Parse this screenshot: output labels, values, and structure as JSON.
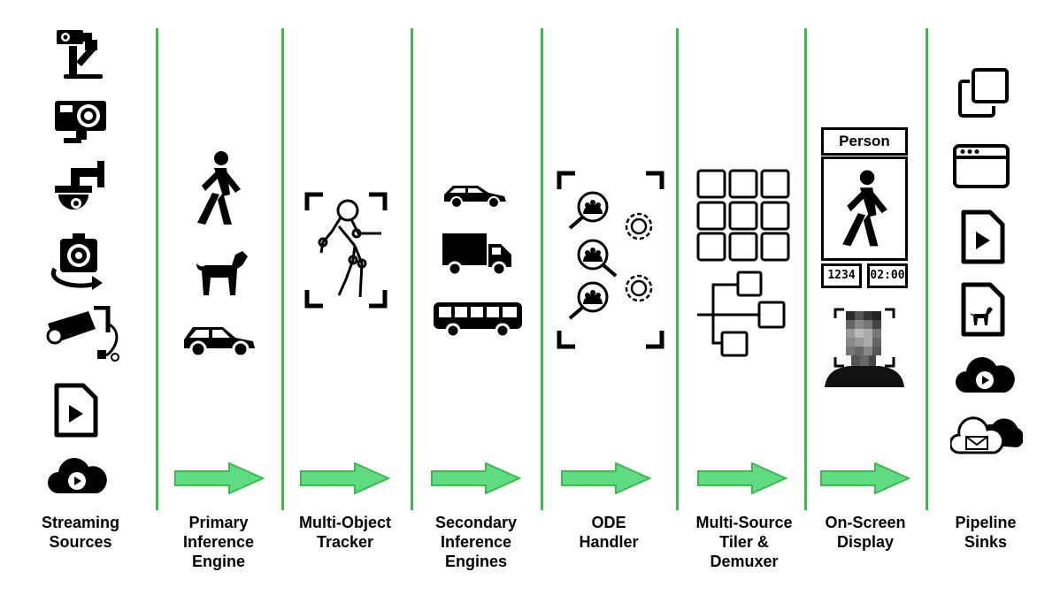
{
  "stages": [
    {
      "label": "Streaming\nSources"
    },
    {
      "label": "Primary\nInference\nEngine"
    },
    {
      "label": "Multi-Object\nTracker"
    },
    {
      "label": "Secondary\nInference\nEngines"
    },
    {
      "label": "ODE\nHandler"
    },
    {
      "label": "Multi-Source\nTiler &\nDemuxer"
    },
    {
      "label": "On-Screen\nDisplay"
    },
    {
      "label": "Pipeline\nSinks"
    }
  ],
  "osd": {
    "class_label": "Person",
    "object_id": "1234",
    "timestamp": "02:00"
  },
  "colors": {
    "divider": "#3dba4e",
    "arrow_fill": "#5fdc83",
    "arrow_stroke": "#3dba4e",
    "icon": "#000000"
  },
  "icons": {
    "sources": [
      "ptz-camera-icon",
      "action-camera-icon",
      "dome-camera-icon",
      "360-camera-icon",
      "bullet-camera-icon",
      "video-file-icon",
      "cloud-stream-icon"
    ],
    "primary": [
      "walking-person-icon",
      "dog-icon",
      "car-icon"
    ],
    "tracker": [
      "tracked-figure-icon"
    ],
    "secondary": [
      "car-icon",
      "truck-icon",
      "bus-icon"
    ],
    "ode": [
      "ode-trigger-action-icon"
    ],
    "tiler": [
      "tile-grid-icon",
      "demux-tree-icon"
    ],
    "osd": [
      "osd-person-frame-icon",
      "blurred-face-icon"
    ],
    "sinks": [
      "window-overlay-icon",
      "window-sink-icon",
      "video-file-sink-icon",
      "image-file-sink-icon",
      "cloud-video-sink-icon",
      "cloud-message-sink-icon"
    ]
  }
}
